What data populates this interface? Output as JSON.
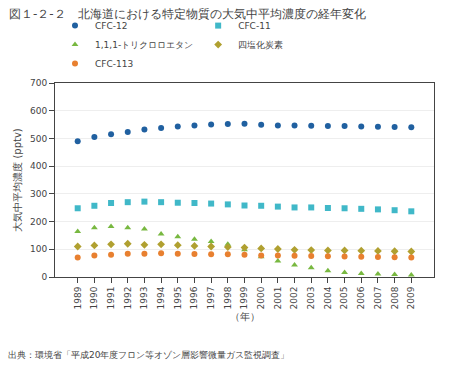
{
  "chart_data": {
    "type": "scatter",
    "title": "図１-２-２　北海道における特定物質の大気中平均濃度の経年変化",
    "xlabel": "（年）",
    "ylabel": "大気中平均濃度",
    "yunits": "(pptv)",
    "source": "出典：環境省「平成20年度フロン等オゾン層影響微量ガス監視調査」",
    "categories": [
      "1989",
      "1990",
      "1991",
      "1992",
      "1993",
      "1994",
      "1995",
      "1996",
      "1997",
      "1998",
      "1999",
      "2000",
      "2001",
      "2002",
      "2003",
      "2004",
      "2005",
      "2006",
      "2007",
      "2008",
      "2009"
    ],
    "ylim": [
      0,
      700
    ],
    "yticks": [
      0,
      100,
      200,
      300,
      400,
      500,
      600,
      700
    ],
    "grid": true,
    "legend": "top",
    "series": [
      {
        "name": "CFC-12",
        "color": "#2060a0",
        "marker": "circle",
        "values": [
          490,
          505,
          515,
          523,
          532,
          538,
          543,
          547,
          550,
          552,
          553,
          549,
          547,
          547,
          546,
          545,
          545,
          543,
          542,
          541,
          540
        ]
      },
      {
        "name": "CFC-11",
        "color": "#40b8c8",
        "marker": "square",
        "values": [
          248,
          257,
          267,
          270,
          272,
          270,
          268,
          267,
          265,
          262,
          258,
          257,
          254,
          251,
          251,
          249,
          248,
          246,
          244,
          241,
          237
        ]
      },
      {
        "name": "1,1,1-トリクロロエタン",
        "color": "#78b840",
        "marker": "triangle",
        "values": [
          164,
          178,
          182,
          178,
          173,
          155,
          145,
          136,
          128,
          118,
          98,
          73,
          58,
          43,
          33,
          23,
          16,
          13,
          11,
          9,
          7
        ]
      },
      {
        "name": "四塩化炭素",
        "color": "#b0a030",
        "marker": "diamond",
        "values": [
          110,
          114,
          118,
          120,
          116,
          118,
          115,
          112,
          110,
          108,
          106,
          103,
          101,
          98,
          97,
          96,
          96,
          95,
          94,
          93,
          92
        ]
      },
      {
        "name": "CFC-113",
        "color": "#e88030",
        "marker": "circle",
        "values": [
          70,
          78,
          80,
          84,
          84,
          86,
          84,
          83,
          82,
          82,
          80,
          78,
          78,
          77,
          76,
          75,
          74,
          73,
          72,
          71,
          70
        ]
      }
    ]
  }
}
